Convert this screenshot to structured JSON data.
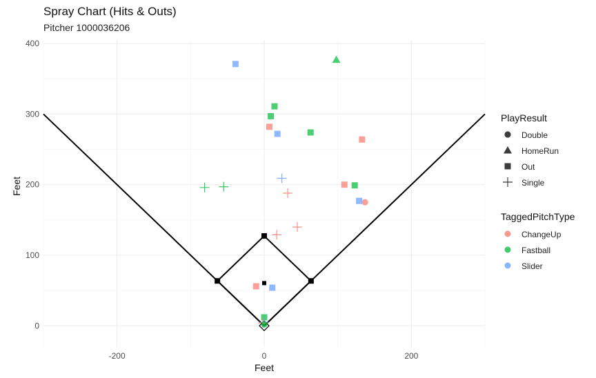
{
  "chart_data": {
    "type": "scatter",
    "title": "Spray Chart (Hits & Outs)",
    "subtitle": "Pitcher 1000036206",
    "xlabel": "Feet",
    "ylabel": "Feet",
    "xlim": [
      -300,
      300
    ],
    "ylim": [
      -30,
      405
    ],
    "x_ticks": [
      -200,
      0,
      200
    ],
    "y_ticks": [
      0,
      100,
      200,
      300,
      400
    ],
    "x_tick_labels": [
      "-200",
      "0",
      "200"
    ],
    "y_tick_labels": [
      "0",
      "100",
      "200",
      "300",
      "400"
    ],
    "grid": true,
    "field_lines": {
      "foul_left": [
        [
          0,
          0
        ],
        [
          -300,
          300
        ]
      ],
      "foul_right": [
        [
          0,
          0
        ],
        [
          300,
          300
        ]
      ],
      "infield_diamond": [
        [
          0,
          0
        ],
        [
          63.6,
          63.6
        ],
        [
          0,
          127.3
        ],
        [
          -63.6,
          63.6
        ]
      ],
      "bases": [
        [
          63.6,
          63.6
        ],
        [
          0,
          127.3
        ],
        [
          -63.6,
          63.6
        ]
      ],
      "mound": [
        0,
        60.5
      ],
      "home_plate": [
        0,
        0
      ]
    },
    "legends": {
      "shape": {
        "title": "PlayResult",
        "entries": [
          {
            "label": "Double",
            "shape": "circle"
          },
          {
            "label": "HomeRun",
            "shape": "triangle"
          },
          {
            "label": "Out",
            "shape": "square"
          },
          {
            "label": "Single",
            "shape": "plus"
          }
        ]
      },
      "color": {
        "title": "TaggedPitchType",
        "entries": [
          {
            "label": "ChangeUp",
            "color": "#F8766D"
          },
          {
            "label": "Fastball",
            "color": "#00BA38"
          },
          {
            "label": "Slider",
            "color": "#619CFF"
          }
        ]
      },
      "placement": "right"
    },
    "points": [
      {
        "x": -39,
        "y": 371,
        "result": "Out",
        "pitch": "Slider"
      },
      {
        "x": 98,
        "y": 377,
        "result": "HomeRun",
        "pitch": "Fastball"
      },
      {
        "x": 14,
        "y": 311,
        "result": "Out",
        "pitch": "Fastball"
      },
      {
        "x": 9,
        "y": 297,
        "result": "Out",
        "pitch": "Fastball"
      },
      {
        "x": 7,
        "y": 282,
        "result": "Out",
        "pitch": "ChangeUp"
      },
      {
        "x": 18,
        "y": 272,
        "result": "Out",
        "pitch": "Slider"
      },
      {
        "x": 63,
        "y": 274,
        "result": "Out",
        "pitch": "Fastball"
      },
      {
        "x": 133,
        "y": 264,
        "result": "Out",
        "pitch": "ChangeUp"
      },
      {
        "x": -81,
        "y": 196,
        "result": "Single",
        "pitch": "Fastball"
      },
      {
        "x": -55,
        "y": 197,
        "result": "Single",
        "pitch": "Fastball"
      },
      {
        "x": 24,
        "y": 209,
        "result": "Single",
        "pitch": "Slider"
      },
      {
        "x": 32,
        "y": 188,
        "result": "Single",
        "pitch": "ChangeUp"
      },
      {
        "x": 109,
        "y": 200,
        "result": "Out",
        "pitch": "ChangeUp"
      },
      {
        "x": 123,
        "y": 199,
        "result": "Out",
        "pitch": "Fastball"
      },
      {
        "x": 137,
        "y": 175,
        "result": "Double",
        "pitch": "ChangeUp"
      },
      {
        "x": 129,
        "y": 177,
        "result": "Out",
        "pitch": "Slider"
      },
      {
        "x": 45,
        "y": 140,
        "result": "Single",
        "pitch": "ChangeUp"
      },
      {
        "x": 17,
        "y": 129,
        "result": "Single",
        "pitch": "ChangeUp"
      },
      {
        "x": -11,
        "y": 56,
        "result": "Out",
        "pitch": "ChangeUp"
      },
      {
        "x": 11,
        "y": 54,
        "result": "Out",
        "pitch": "Slider"
      },
      {
        "x": 0,
        "y": 12,
        "result": "Out",
        "pitch": "Fastball"
      },
      {
        "x": 0,
        "y": 5,
        "result": "Single",
        "pitch": "Slider"
      },
      {
        "x": -2,
        "y": 4,
        "result": "Single",
        "pitch": "ChangeUp"
      },
      {
        "x": 0,
        "y": 2,
        "result": "Double",
        "pitch": "Fastball"
      }
    ]
  }
}
